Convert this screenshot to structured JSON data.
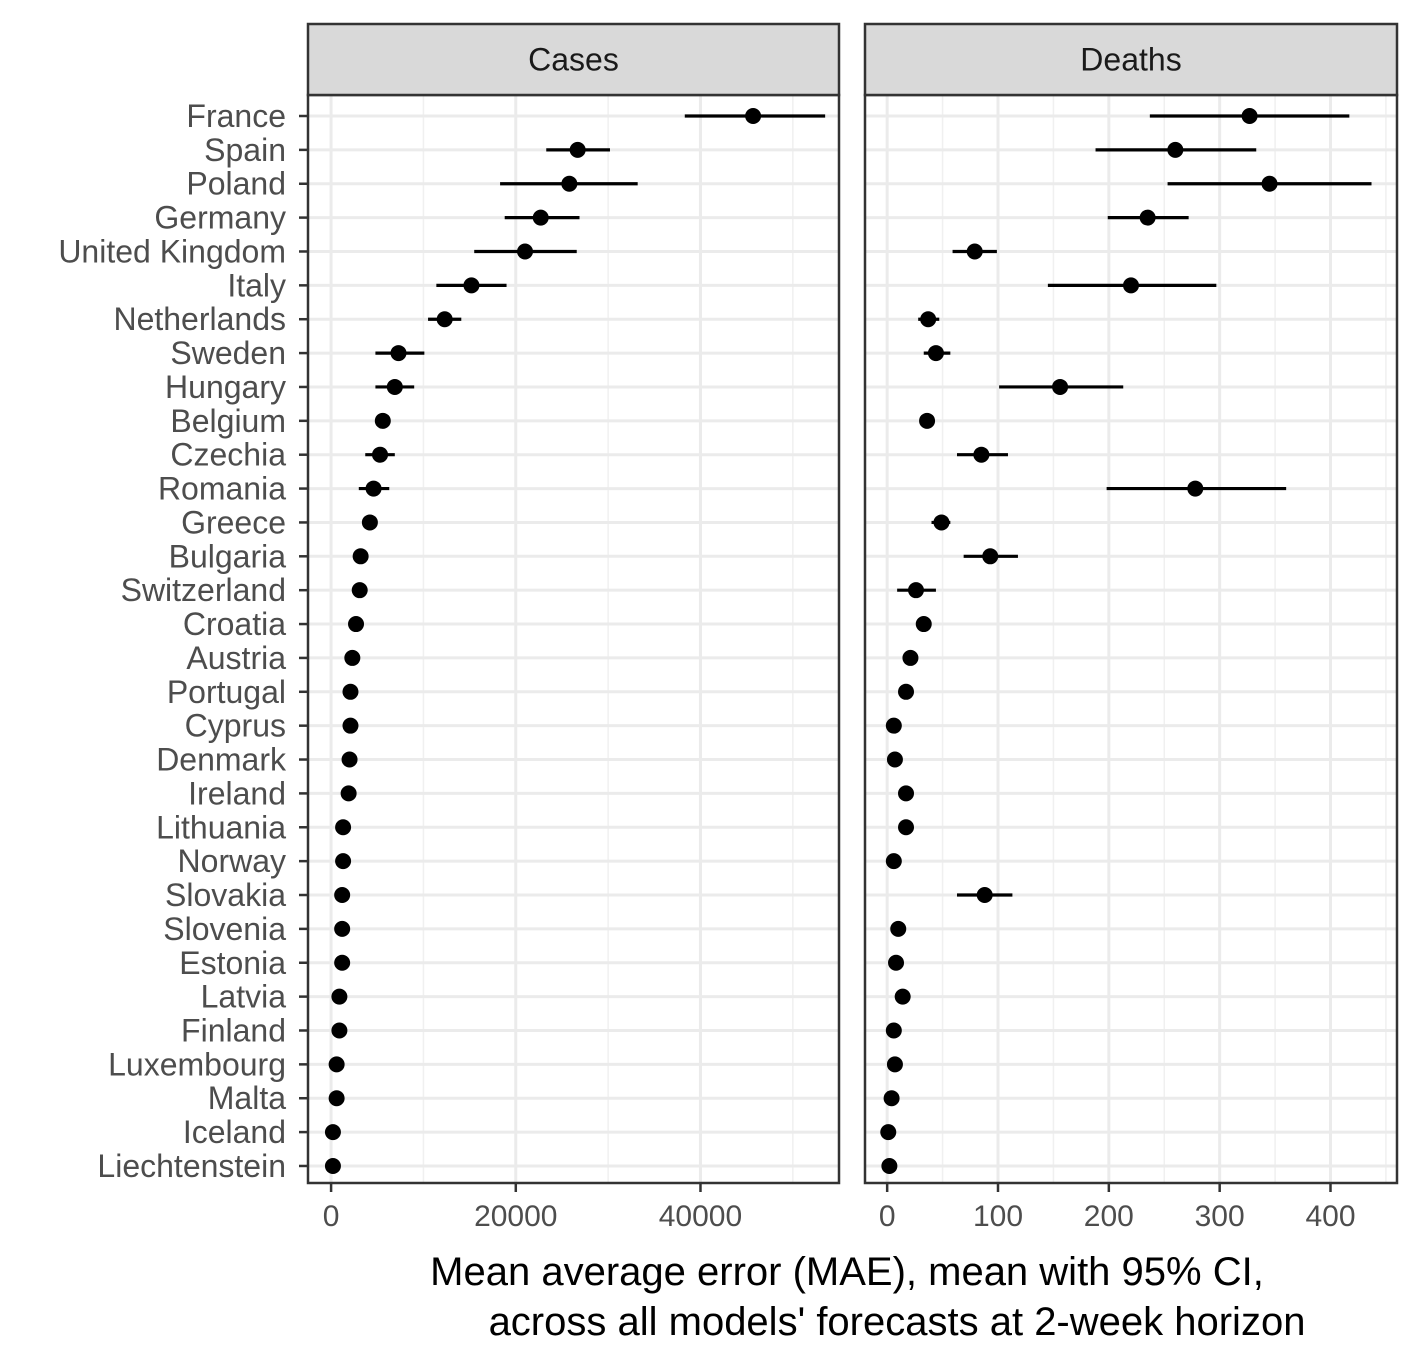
{
  "chart_data": {
    "type": "scatter",
    "xlabel": "Mean average error (MAE), mean with 95% CI,",
    "xlabel_line2": "across all models' forecasts at 2-week horizon",
    "grid": true,
    "categories": [
      "France",
      "Spain",
      "Poland",
      "Germany",
      "United Kingdom",
      "Italy",
      "Netherlands",
      "Sweden",
      "Hungary",
      "Belgium",
      "Czechia",
      "Romania",
      "Greece",
      "Bulgaria",
      "Switzerland",
      "Croatia",
      "Austria",
      "Portugal",
      "Cyprus",
      "Denmark",
      "Ireland",
      "Lithuania",
      "Norway",
      "Slovakia",
      "Slovenia",
      "Estonia",
      "Latvia",
      "Finland",
      "Luxembourg",
      "Malta",
      "Iceland",
      "Liechtenstein"
    ],
    "panels": [
      {
        "name": "Cases",
        "xlim": [
          -2500,
          55000
        ],
        "xticks": [
          0,
          20000,
          40000
        ],
        "xtick_labels": [
          "0",
          "20000",
          "40000"
        ],
        "mean": [
          45700,
          26700,
          25800,
          22700,
          21000,
          15200,
          12300,
          7300,
          6900,
          5600,
          5300,
          4600,
          4200,
          3200,
          3100,
          2700,
          2300,
          2100,
          2100,
          2000,
          1900,
          1300,
          1300,
          1200,
          1200,
          1200,
          900,
          900,
          600,
          600,
          200,
          200
        ],
        "lower": [
          38300,
          23300,
          18300,
          18800,
          15500,
          11400,
          10500,
          4800,
          4800,
          null,
          3700,
          3000,
          null,
          null,
          null,
          null,
          null,
          null,
          null,
          null,
          null,
          null,
          null,
          null,
          null,
          null,
          null,
          null,
          null,
          null,
          null,
          null
        ],
        "upper": [
          53500,
          30200,
          33200,
          26900,
          26600,
          19000,
          14100,
          10100,
          9000,
          null,
          6900,
          6300,
          null,
          null,
          null,
          null,
          null,
          null,
          null,
          null,
          null,
          null,
          null,
          null,
          null,
          null,
          null,
          null,
          null,
          null,
          null,
          null
        ]
      },
      {
        "name": "Deaths",
        "xlim": [
          -20,
          460
        ],
        "xticks": [
          0,
          100,
          200,
          300,
          400
        ],
        "xtick_labels": [
          "0",
          "100",
          "200",
          "300",
          "400"
        ],
        "mean": [
          327,
          260,
          345,
          235,
          79,
          220,
          37,
          44,
          156,
          36,
          85,
          278,
          49,
          93,
          26,
          33,
          21,
          17,
          6,
          7,
          17,
          17,
          6,
          88,
          10,
          8,
          14,
          6,
          7,
          4,
          1,
          2
        ],
        "lower": [
          237,
          188,
          253,
          199,
          59,
          145,
          28,
          33,
          101,
          null,
          63,
          198,
          40,
          69,
          9,
          null,
          null,
          null,
          null,
          null,
          null,
          null,
          null,
          63,
          null,
          null,
          null,
          null,
          null,
          null,
          null,
          null
        ],
        "upper": [
          417,
          333,
          437,
          272,
          99,
          297,
          47,
          57,
          213,
          null,
          109,
          360,
          57,
          118,
          44,
          null,
          null,
          null,
          null,
          null,
          null,
          null,
          null,
          113,
          null,
          null,
          null,
          null,
          null,
          null,
          null,
          null
        ]
      }
    ]
  }
}
